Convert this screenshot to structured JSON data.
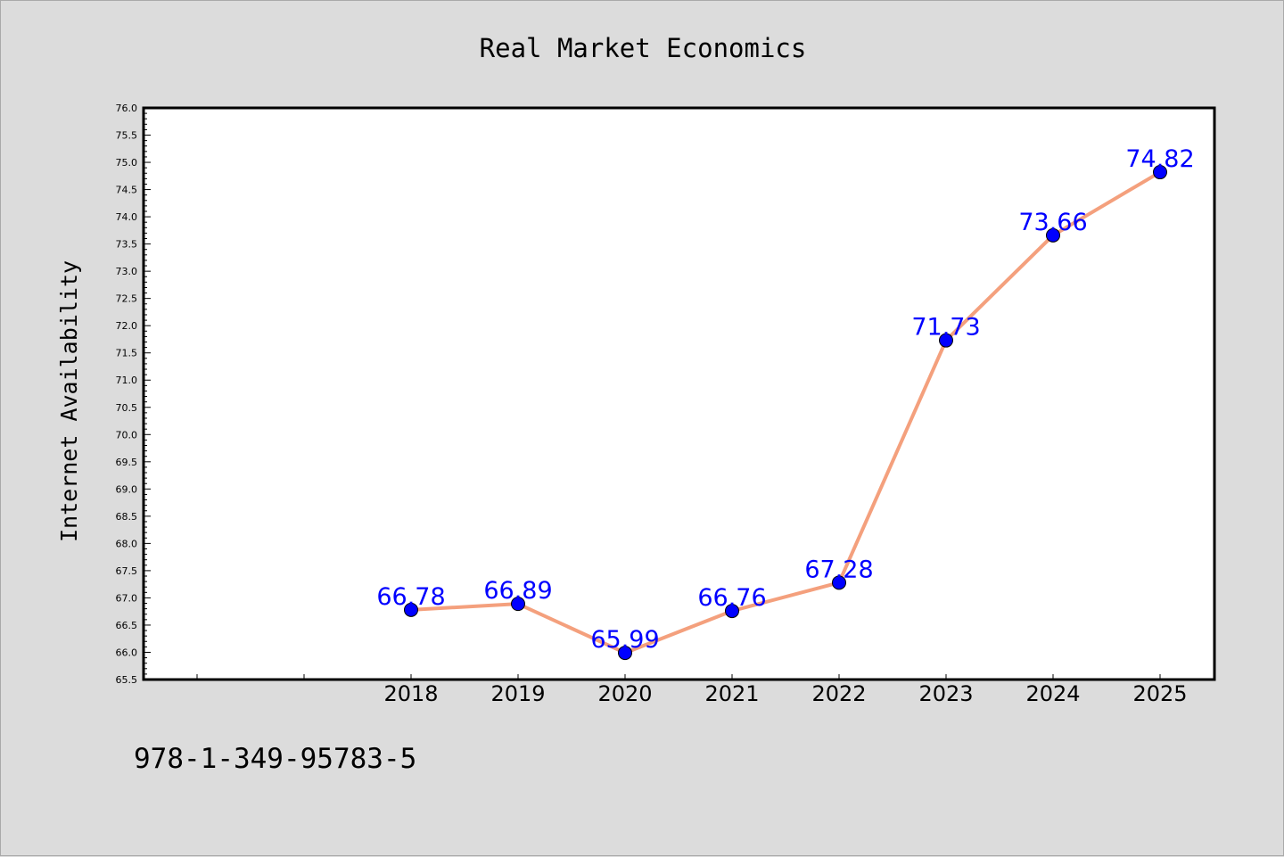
{
  "chart_data": {
    "type": "line",
    "title": "Real Market Economics",
    "xlabel": "",
    "ylabel": "Internet Availability",
    "categories": [
      "2018",
      "2019",
      "2020",
      "2021",
      "2022",
      "2023",
      "2024",
      "2025"
    ],
    "series": [
      {
        "values": [
          66.78,
          66.89,
          65.99,
          66.76,
          67.28,
          71.73,
          73.66,
          74.82
        ],
        "data_labels": [
          "66.78",
          "66.89",
          "65.99",
          "66.76",
          "67.28",
          "71.73",
          "73.66",
          "74.82"
        ]
      }
    ],
    "ylim": [
      65.5,
      76.0
    ],
    "y_ticks": [
      "65.5",
      "66.0",
      "66.5",
      "67.0",
      "67.5",
      "68.0",
      "68.5",
      "69.0",
      "69.5",
      "70.0",
      "70.5",
      "71.0",
      "71.5",
      "72.0",
      "72.5",
      "73.0",
      "73.5",
      "74.0",
      "74.5",
      "75.0",
      "75.5",
      "76.0"
    ],
    "grid": false,
    "line_color": "#f4a07d",
    "marker_color": "#0000ff",
    "label_color": "#0000ff"
  },
  "footer": {
    "isbn": "978-1-349-95783-5"
  }
}
